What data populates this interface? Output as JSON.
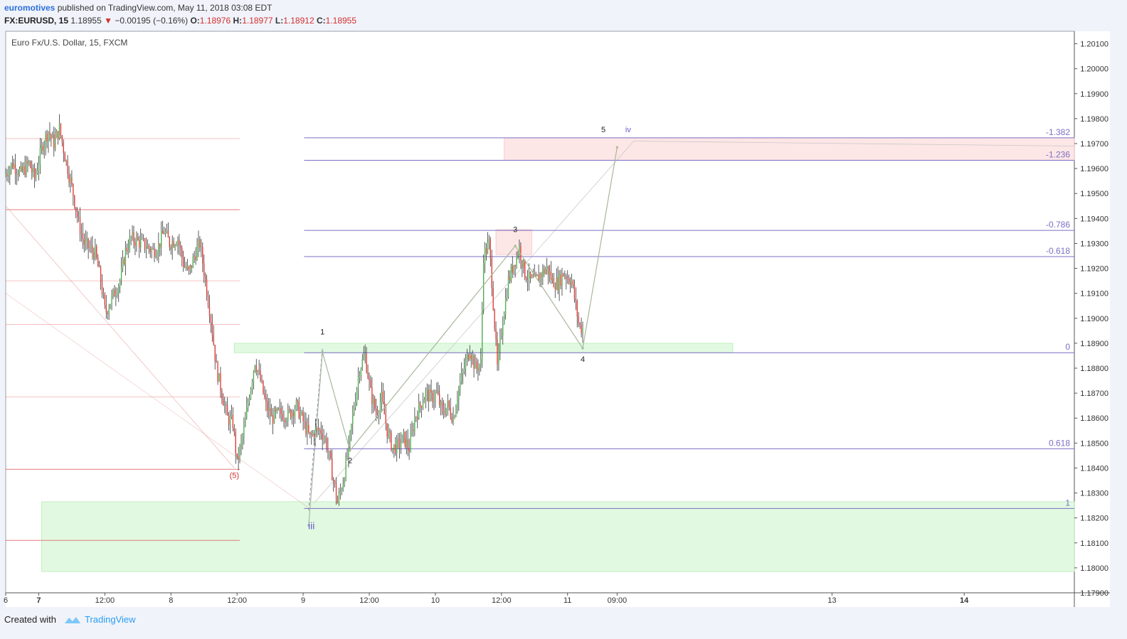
{
  "header": {
    "author": "euromotives",
    "published": " published on TradingView.com, May 11, 2018 03:08 EDT",
    "symbol": "FX:EURUSD, 15",
    "price": "1.18955",
    "change": "−0.00195 (−0.16%)",
    "open_label": "O:",
    "open": "1.18976",
    "high_label": "H:",
    "high": "1.18977",
    "low_label": "L:",
    "low": "1.18912",
    "close_label": "C:",
    "close": "1.18955"
  },
  "footer": {
    "created_with": "Created with",
    "brand": "TradingView"
  },
  "colors": {
    "up": "#4caf50",
    "down": "#e53935",
    "fib": "#7a6fc4",
    "red_line": "#e57373",
    "green_zone": "#d9f7d9",
    "pink_zone": "#fde0e0"
  },
  "chart_data": {
    "type": "candlestick",
    "title": "Euro Fx/U.S. Dollar, 15, FXCM",
    "ylim": [
      1.179,
      1.2015
    ],
    "x_range": [
      "2018-05-06 18:00",
      "2018-05-14 20:00"
    ],
    "y_ticks": [
      "1.20100",
      "1.20000",
      "1.19900",
      "1.19800",
      "1.19700",
      "1.19600",
      "1.19500",
      "1.19400",
      "1.19300",
      "1.19200",
      "1.19100",
      "1.19000",
      "1.18900",
      "1.18800",
      "1.18700",
      "1.18600",
      "1.18500",
      "1.18400",
      "1.18300",
      "1.18200",
      "1.18100",
      "1.18000",
      "1.17900"
    ],
    "x_ticks": [
      {
        "label": "6",
        "t": "2018-05-06 18:00"
      },
      {
        "label": "7",
        "t": "2018-05-07 00:00"
      },
      {
        "label": "12:00",
        "t": "2018-05-07 12:00"
      },
      {
        "label": "8",
        "t": "2018-05-08 00:00"
      },
      {
        "label": "12:00",
        "t": "2018-05-08 12:00"
      },
      {
        "label": "9",
        "t": "2018-05-09 00:00"
      },
      {
        "label": "12:00",
        "t": "2018-05-09 12:00"
      },
      {
        "label": "10",
        "t": "2018-05-10 00:00"
      },
      {
        "label": "12:00",
        "t": "2018-05-10 12:00"
      },
      {
        "label": "11",
        "t": "2018-05-11 00:00"
      },
      {
        "label": "09:00",
        "t": "2018-05-11 09:00"
      },
      {
        "label": "13",
        "t": "2018-05-13 00:00"
      },
      {
        "label": "14",
        "t": "2018-05-14 00:00"
      }
    ],
    "price_path": [
      [
        "2018-05-06 18:00",
        1.1957
      ],
      [
        "2018-05-06 19:30",
        1.1962
      ],
      [
        "2018-05-06 21:00",
        1.1958
      ],
      [
        "2018-05-06 22:30",
        1.1962
      ],
      [
        "2018-05-06 23:30",
        1.1956
      ],
      [
        "2018-05-07 01:00",
        1.197
      ],
      [
        "2018-05-07 02:00",
        1.1975
      ],
      [
        "2018-05-07 03:00",
        1.197
      ],
      [
        "2018-05-07 04:00",
        1.1976
      ],
      [
        "2018-05-07 05:00",
        1.1965
      ],
      [
        "2018-05-07 06:30",
        1.195
      ],
      [
        "2018-05-07 07:30",
        1.1938
      ],
      [
        "2018-05-07 08:30",
        1.193
      ],
      [
        "2018-05-07 09:30",
        1.1928
      ],
      [
        "2018-05-07 10:30",
        1.1926
      ],
      [
        "2018-05-07 11:30",
        1.1915
      ],
      [
        "2018-05-07 12:20",
        1.1902
      ],
      [
        "2018-05-07 13:30",
        1.1908
      ],
      [
        "2018-05-07 15:00",
        1.1915
      ],
      [
        "2018-05-07 16:00",
        1.1927
      ],
      [
        "2018-05-07 17:00",
        1.1932
      ],
      [
        "2018-05-07 19:00",
        1.193
      ],
      [
        "2018-05-07 21:00",
        1.1927
      ],
      [
        "2018-05-07 22:00",
        1.1929
      ],
      [
        "2018-05-07 23:00",
        1.1935
      ],
      [
        "2018-05-08 00:00",
        1.193
      ],
      [
        "2018-05-08 01:30",
        1.1932
      ],
      [
        "2018-05-08 02:30",
        1.1922
      ],
      [
        "2018-05-08 03:30",
        1.1918
      ],
      [
        "2018-05-08 04:30",
        1.1925
      ],
      [
        "2018-05-08 05:30",
        1.193
      ],
      [
        "2018-05-08 06:30",
        1.1915
      ],
      [
        "2018-05-08 07:30",
        1.19
      ],
      [
        "2018-05-08 08:30",
        1.188
      ],
      [
        "2018-05-08 09:30",
        1.187
      ],
      [
        "2018-05-08 10:30",
        1.186
      ],
      [
        "2018-05-08 11:30",
        1.1858
      ],
      [
        "2018-05-08 12:15",
        1.1842
      ],
      [
        "2018-05-08 13:30",
        1.1855
      ],
      [
        "2018-05-08 14:30",
        1.187
      ],
      [
        "2018-05-08 15:30",
        1.1883
      ],
      [
        "2018-05-08 16:30",
        1.1875
      ],
      [
        "2018-05-08 17:30",
        1.1865
      ],
      [
        "2018-05-08 18:30",
        1.186
      ],
      [
        "2018-05-08 20:00",
        1.1862
      ],
      [
        "2018-05-08 21:30",
        1.1861
      ],
      [
        "2018-05-08 23:00",
        1.1865
      ],
      [
        "2018-05-09 00:00",
        1.186
      ],
      [
        "2018-05-09 01:30",
        1.1852
      ],
      [
        "2018-05-09 02:30",
        1.1855
      ],
      [
        "2018-05-09 03:30",
        1.1855
      ],
      [
        "2018-05-09 04:30",
        1.185
      ],
      [
        "2018-05-09 05:30",
        1.1838
      ],
      [
        "2018-05-09 06:30",
        1.1826
      ],
      [
        "2018-05-09 07:30",
        1.1835
      ],
      [
        "2018-05-09 08:30",
        1.1848
      ],
      [
        "2018-05-09 09:30",
        1.1865
      ],
      [
        "2018-05-09 10:30",
        1.188
      ],
      [
        "2018-05-09 11:30",
        1.1885
      ],
      [
        "2018-05-09 12:30",
        1.187
      ],
      [
        "2018-05-09 13:30",
        1.1862
      ],
      [
        "2018-05-09 14:30",
        1.1868
      ],
      [
        "2018-05-09 15:30",
        1.1855
      ],
      [
        "2018-05-09 16:30",
        1.1848
      ],
      [
        "2018-05-09 17:30",
        1.1849
      ],
      [
        "2018-05-09 18:30",
        1.1852
      ],
      [
        "2018-05-09 19:30",
        1.1848
      ],
      [
        "2018-05-09 20:30",
        1.186
      ],
      [
        "2018-05-09 21:30",
        1.1865
      ],
      [
        "2018-05-09 22:30",
        1.187
      ],
      [
        "2018-05-09 23:30",
        1.1868
      ],
      [
        "2018-05-10 00:30",
        1.187
      ],
      [
        "2018-05-10 01:30",
        1.1862
      ],
      [
        "2018-05-10 02:30",
        1.1865
      ],
      [
        "2018-05-10 03:30",
        1.186
      ],
      [
        "2018-05-10 04:30",
        1.1872
      ],
      [
        "2018-05-10 05:30",
        1.188
      ],
      [
        "2018-05-10 06:30",
        1.1888
      ],
      [
        "2018-05-10 07:30",
        1.188
      ],
      [
        "2018-05-10 08:30",
        1.1882
      ],
      [
        "2018-05-10 09:00",
        1.1925
      ],
      [
        "2018-05-10 10:00",
        1.193
      ],
      [
        "2018-05-10 10:30",
        1.1915
      ],
      [
        "2018-05-10 11:30",
        1.188
      ],
      [
        "2018-05-10 12:30",
        1.19
      ],
      [
        "2018-05-10 13:30",
        1.1915
      ],
      [
        "2018-05-10 14:30",
        1.1922
      ],
      [
        "2018-05-10 15:30",
        1.1928
      ],
      [
        "2018-05-10 16:30",
        1.1918
      ],
      [
        "2018-05-10 17:30",
        1.1915
      ],
      [
        "2018-05-10 18:30",
        1.1915
      ],
      [
        "2018-05-10 19:30",
        1.1918
      ],
      [
        "2018-05-10 20:30",
        1.192
      ],
      [
        "2018-05-10 21:30",
        1.1915
      ],
      [
        "2018-05-10 22:30",
        1.1914
      ],
      [
        "2018-05-10 23:30",
        1.1918
      ],
      [
        "2018-05-11 00:30",
        1.1916
      ],
      [
        "2018-05-11 01:00",
        1.1915
      ],
      [
        "2018-05-11 01:45",
        1.1905
      ],
      [
        "2018-05-11 02:20",
        1.1897
      ],
      [
        "2018-05-11 02:45",
        1.1896
      ]
    ],
    "fib_levels": [
      {
        "label": "-1.382",
        "price": 1.19723
      },
      {
        "label": "-1.236",
        "price": 1.19633
      },
      {
        "label": "-0.786",
        "price": 1.19352
      },
      {
        "label": "-0.618",
        "price": 1.19247
      },
      {
        "label": "0",
        "price": 1.18862
      },
      {
        "label": "0.618",
        "price": 1.18477
      },
      {
        "label": "1",
        "price": 1.18238
      }
    ],
    "red_lines": [
      1.1972,
      1.19435,
      1.1915,
      1.18975,
      1.18685,
      1.18395,
      1.1811
    ],
    "zones": [
      {
        "kind": "green",
        "t0": "2018-05-07 00:30",
        "t1": "2018-05-14 20:00",
        "p0": 1.18265,
        "p1": 1.17985
      },
      {
        "kind": "green",
        "t0": "2018-05-08 11:30",
        "t1": "2018-05-12 06:00",
        "p0": 1.189,
        "p1": 1.18862
      },
      {
        "kind": "pink",
        "t0": "2018-05-10 12:30",
        "t1": "2018-05-14 20:00",
        "p0": 1.19723,
        "p1": 1.19633
      },
      {
        "kind": "pink",
        "t0": "2018-05-10 11:00",
        "t1": "2018-05-10 17:30",
        "p0": 1.19355,
        "p1": 1.19255
      }
    ],
    "wave_labels": [
      {
        "label": "(5)",
        "t": "2018-05-08 11:30",
        "p": 1.1836,
        "color": "#d32f2f"
      },
      {
        "label": "iii",
        "t": "2018-05-09 01:30",
        "p": 1.18155,
        "color": "#6a5acd"
      },
      {
        "label": "1",
        "t": "2018-05-09 03:30",
        "p": 1.18935,
        "color": "#222"
      },
      {
        "label": "2",
        "t": "2018-05-09 08:30",
        "p": 1.1842,
        "color": "#222"
      },
      {
        "label": "3",
        "t": "2018-05-10 14:30",
        "p": 1.19345,
        "color": "#222"
      },
      {
        "label": "4",
        "t": "2018-05-11 02:45",
        "p": 1.18825,
        "color": "#222"
      },
      {
        "label": "5",
        "t": "2018-05-11 06:30",
        "p": 1.19745,
        "color": "#222"
      },
      {
        "label": "iv",
        "t": "2018-05-11 11:00",
        "p": 1.19745,
        "color": "#6a5acd"
      }
    ],
    "wave_path": [
      [
        "2018-05-09 01:00",
        1.1817
      ],
      [
        "2018-05-09 03:30",
        1.18865
      ],
      [
        "2018-05-09 08:30",
        1.1847
      ],
      [
        "2018-05-10 14:30",
        1.1929
      ],
      [
        "2018-05-11 02:45",
        1.1888
      ],
      [
        "2018-05-11 09:00",
        1.19685
      ]
    ]
  }
}
